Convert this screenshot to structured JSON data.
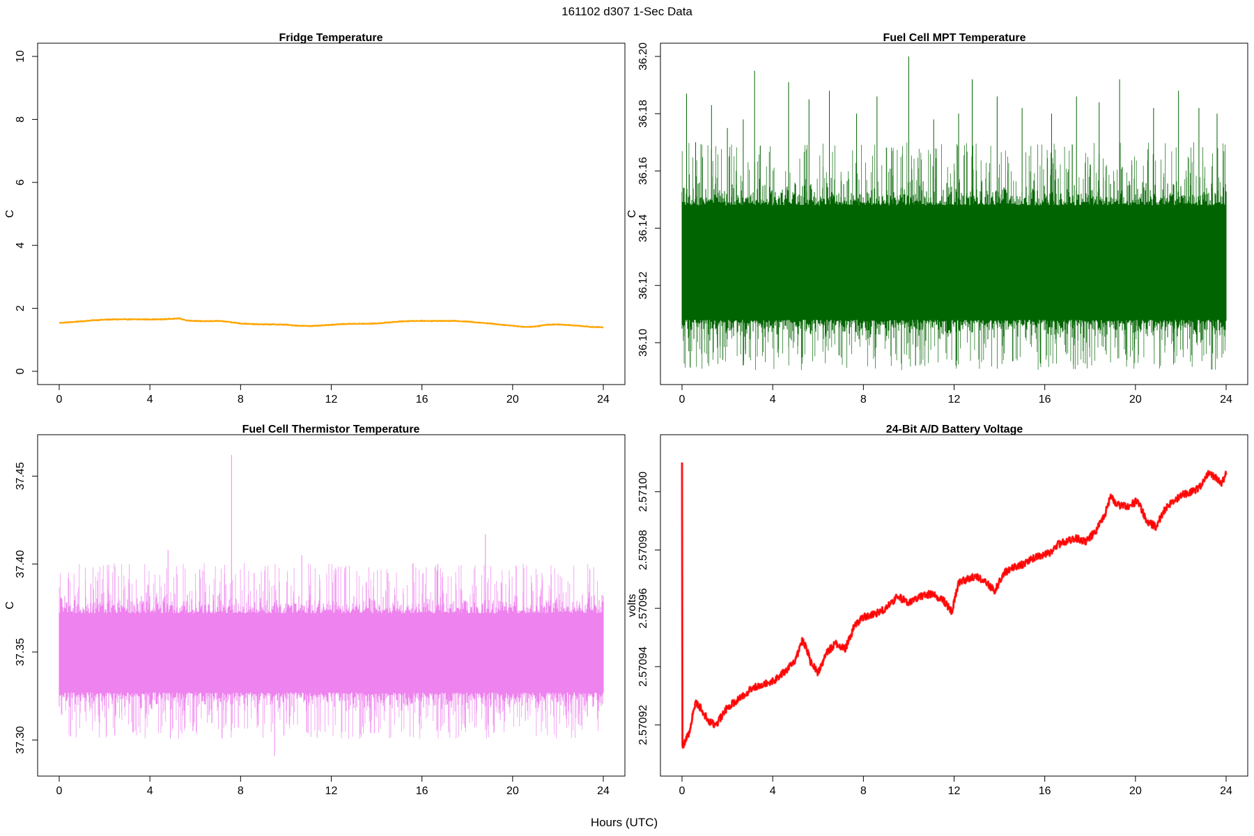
{
  "figure": {
    "main_title": "161102   d307   1-Sec Data",
    "xlabel": "Hours (UTC)"
  },
  "chart_data": [
    {
      "type": "line",
      "title": "Fridge Temperature",
      "xlabel": "Hours (UTC)",
      "ylabel": "C",
      "color": "#FFA500",
      "style": "trace",
      "xlim": [
        0,
        24
      ],
      "ylim": [
        0,
        10
      ],
      "xticks": [
        0,
        4,
        8,
        12,
        16,
        20,
        24
      ],
      "xtick_labels": [
        "0",
        "4",
        "8",
        "12",
        "16",
        "20",
        "24"
      ],
      "yticks": [
        0,
        2,
        4,
        6,
        8,
        10
      ],
      "ytick_labels": [
        "0",
        "2",
        "4",
        "6",
        "8",
        "10"
      ],
      "series": [
        {
          "name": "Fridge Temperature",
          "x": [
            0,
            0.5,
            1,
            1.5,
            2,
            2.5,
            3,
            3.5,
            4,
            4.5,
            5,
            5.3,
            5.6,
            6,
            6.5,
            7,
            7.5,
            8,
            8.5,
            9,
            9.5,
            10,
            10.5,
            11,
            11.5,
            12,
            12.5,
            13,
            13.5,
            14,
            14.5,
            15,
            15.5,
            16,
            16.5,
            17,
            17.5,
            18,
            18.5,
            19,
            19.5,
            20,
            20.5,
            21,
            21.5,
            22,
            22.5,
            23,
            23.5,
            24
          ],
          "y": [
            1.54,
            1.56,
            1.59,
            1.62,
            1.64,
            1.65,
            1.65,
            1.65,
            1.65,
            1.65,
            1.67,
            1.68,
            1.62,
            1.6,
            1.59,
            1.6,
            1.57,
            1.52,
            1.5,
            1.49,
            1.49,
            1.48,
            1.45,
            1.44,
            1.45,
            1.48,
            1.5,
            1.51,
            1.51,
            1.52,
            1.55,
            1.58,
            1.6,
            1.6,
            1.6,
            1.6,
            1.6,
            1.58,
            1.55,
            1.52,
            1.48,
            1.45,
            1.41,
            1.42,
            1.48,
            1.49,
            1.47,
            1.44,
            1.41,
            1.4
          ],
          "noise": 0.012,
          "spikes": []
        }
      ]
    },
    {
      "type": "line",
      "title": "Fuel Cell MPT Temperature",
      "xlabel": "Hours (UTC)",
      "ylabel": "C",
      "color": "#006400",
      "style": "band",
      "xlim": [
        0,
        24
      ],
      "ylim": [
        36.09,
        36.2
      ],
      "xticks": [
        0,
        4,
        8,
        12,
        16,
        20,
        24
      ],
      "xtick_labels": [
        "0",
        "4",
        "8",
        "12",
        "16",
        "20",
        "24"
      ],
      "yticks": [
        36.1,
        36.12,
        36.14,
        36.16,
        36.18,
        36.2
      ],
      "ytick_labels": [
        "36.10",
        "36.12",
        "36.14",
        "36.16",
        "36.18",
        "36.20"
      ],
      "series": [
        {
          "name": "Fuel Cell MPT Temperature",
          "x": [
            0,
            24
          ],
          "y": [
            36.127,
            36.127
          ],
          "core_low": 36.108,
          "core_high": 36.148,
          "fringe_low": 36.1,
          "fringe_high": 36.158,
          "spikes": [
            [
              0.2,
              36.187
            ],
            [
              0.6,
              36.17
            ],
            [
              1.3,
              36.183
            ],
            [
              2.0,
              36.175
            ],
            [
              2.7,
              36.178
            ],
            [
              3.2,
              36.195
            ],
            [
              4.7,
              36.191
            ],
            [
              5.6,
              36.185
            ],
            [
              6.5,
              36.188
            ],
            [
              7.7,
              36.18
            ],
            [
              8.6,
              36.186
            ],
            [
              10.0,
              36.2
            ],
            [
              11.1,
              36.178
            ],
            [
              12.2,
              36.18
            ],
            [
              12.8,
              36.192
            ],
            [
              13.9,
              36.186
            ],
            [
              15.0,
              36.182
            ],
            [
              16.3,
              36.18
            ],
            [
              17.4,
              36.186
            ],
            [
              18.4,
              36.184
            ],
            [
              19.3,
              36.192
            ],
            [
              20.8,
              36.182
            ],
            [
              21.9,
              36.188
            ],
            [
              22.8,
              36.182
            ],
            [
              23.6,
              36.18
            ],
            [
              0.3,
              36.097
            ],
            [
              1.8,
              36.094
            ],
            [
              2.8,
              36.096
            ],
            [
              10.3,
              36.092
            ],
            [
              15.8,
              36.093
            ],
            [
              22.7,
              36.1
            ]
          ]
        }
      ]
    },
    {
      "type": "line",
      "title": "Fuel Cell Thermistor Temperature",
      "xlabel": "Hours (UTC)",
      "ylabel": "C",
      "color": "#EE82EE",
      "style": "band",
      "xlim": [
        0,
        24
      ],
      "ylim": [
        37.287,
        37.466
      ],
      "xticks": [
        0,
        4,
        8,
        12,
        16,
        20,
        24
      ],
      "xtick_labels": [
        "0",
        "4",
        "8",
        "12",
        "16",
        "20",
        "24"
      ],
      "yticks": [
        37.3,
        37.35,
        37.4,
        37.45
      ],
      "ytick_labels": [
        "37.30",
        "37.35",
        "37.40",
        "37.45"
      ],
      "series": [
        {
          "name": "Fuel Cell Thermistor Temperature",
          "x": [
            0,
            24
          ],
          "y": [
            37.349,
            37.35
          ],
          "core_low": 37.327,
          "core_high": 37.372,
          "fringe_low": 37.315,
          "fringe_high": 37.385,
          "spikes": [
            [
              0.4,
              37.392
            ],
            [
              1.4,
              37.389
            ],
            [
              3.1,
              37.389
            ],
            [
              4.8,
              37.408
            ],
            [
              6.2,
              37.397
            ],
            [
              7.6,
              37.462
            ],
            [
              8.6,
              37.395
            ],
            [
              10.7,
              37.405
            ],
            [
              12.6,
              37.398
            ],
            [
              14.5,
              37.395
            ],
            [
              16.7,
              37.4
            ],
            [
              18.8,
              37.417
            ],
            [
              21.7,
              37.394
            ],
            [
              0.5,
              37.302
            ],
            [
              4.9,
              37.301
            ],
            [
              7.9,
              37.307
            ],
            [
              9.5,
              37.291
            ],
            [
              13.9,
              37.304
            ],
            [
              17.9,
              37.307
            ],
            [
              22.9,
              37.309
            ]
          ]
        }
      ]
    },
    {
      "type": "line",
      "title": "24-Bit A/D Battery Voltage",
      "xlabel": "Hours (UTC)",
      "ylabel": "volts",
      "color": "#FF0000",
      "style": "trace",
      "xlim": [
        0,
        24
      ],
      "ylim": [
        2.570907,
        2.571015
      ],
      "xticks": [
        0,
        4,
        8,
        12,
        16,
        20,
        24
      ],
      "xtick_labels": [
        "0",
        "4",
        "8",
        "12",
        "16",
        "20",
        "24"
      ],
      "yticks": [
        2.57092,
        2.57094,
        2.57096,
        2.57098,
        2.571
      ],
      "ytick_labels": [
        "2.57092",
        "2.57094",
        "2.57096",
        "2.57098",
        "2.57100"
      ],
      "series": [
        {
          "name": "24-Bit A/D Battery Voltage",
          "x": [
            0,
            0.01,
            0.03,
            0.05,
            0.1,
            0.3,
            0.6,
            0.8,
            1.2,
            1.5,
            2.0,
            2.5,
            3.0,
            3.5,
            4.0,
            4.5,
            5.0,
            5.3,
            5.5,
            5.7,
            6.0,
            6.4,
            6.8,
            7.2,
            7.6,
            8.0,
            8.5,
            9.0,
            9.5,
            10.0,
            10.5,
            11.0,
            11.5,
            11.9,
            12.2,
            12.6,
            13.0,
            13.4,
            13.8,
            14.2,
            14.6,
            15.0,
            15.4,
            15.8,
            16.2,
            16.6,
            17.0,
            17.4,
            17.8,
            18.2,
            18.6,
            18.9,
            19.3,
            19.7,
            20.1,
            20.5,
            20.9,
            21.3,
            21.7,
            22.1,
            22.5,
            22.9,
            23.2,
            23.5,
            23.8,
            24.0
          ],
          "y": [
            2.57101,
            2.570914,
            2.570912,
            2.570913,
            2.570914,
            2.570917,
            2.570928,
            2.570926,
            2.570921,
            2.57092,
            2.570926,
            2.570929,
            2.570932,
            2.570934,
            2.570935,
            2.570938,
            2.570942,
            2.570949,
            2.570946,
            2.570941,
            2.570938,
            2.570945,
            2.570948,
            2.570946,
            2.570954,
            2.570957,
            2.570958,
            2.57096,
            2.570964,
            2.570962,
            2.570964,
            2.570965,
            2.570963,
            2.570959,
            2.570969,
            2.57097,
            2.570971,
            2.570969,
            2.570966,
            2.570972,
            2.570974,
            2.570975,
            2.570977,
            2.570978,
            2.570979,
            2.570982,
            2.570983,
            2.570984,
            2.570983,
            2.570986,
            2.570991,
            2.570998,
            2.570995,
            2.570995,
            2.570997,
            2.57099,
            2.570988,
            2.570994,
            2.570997,
            2.570999,
            2.571,
            2.571002,
            2.571006,
            2.571005,
            2.571003,
            2.571006
          ],
          "noise": 1.2e-06,
          "spikes": []
        }
      ]
    }
  ]
}
